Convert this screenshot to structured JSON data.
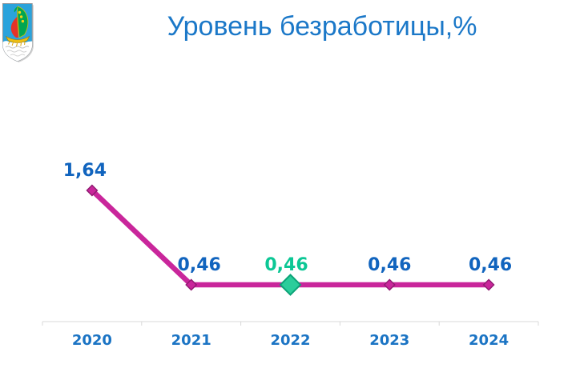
{
  "logo": {
    "description": "city coat of arms: golden boat with green sail and red sail on blue shield over silver water",
    "shield_color": "#2AA3DC",
    "sail_green": "#00A651",
    "sail_red": "#E53328",
    "boat_gold": "#EDBE12",
    "water_color": "#FFFFFF",
    "border_color": "#8E9499"
  },
  "chart_data": {
    "type": "line",
    "title": "Уровень безработицы,%",
    "categories": [
      "2020",
      "2021",
      "2022",
      "2023",
      "2024"
    ],
    "series": [
      {
        "name": "Уровень безработицы, %",
        "values": [
          1.64,
          0.46,
          0.46,
          0.46,
          0.46
        ]
      }
    ],
    "point_labels": [
      "1,64",
      "0,46",
      "0,46",
      "0,46",
      "0,46"
    ],
    "highlighted_index": 2,
    "highlighted_category": "2022",
    "xlabel": "",
    "ylabel": "",
    "ylim": [
      0,
      2
    ],
    "grid": false,
    "legend": "none",
    "colors": {
      "title": "#1B78C8",
      "line": "#C9269B",
      "marker_fill": "#C9269B",
      "marker_stroke": "#8F1B70",
      "highlight_marker_fill": "#2BCD9B",
      "highlight_marker_stroke": "#0BA377",
      "label": "#1164BE",
      "highlight_label": "#0CC795",
      "axis": "#D8D8D8",
      "tick_label": "#1B74C4"
    }
  }
}
